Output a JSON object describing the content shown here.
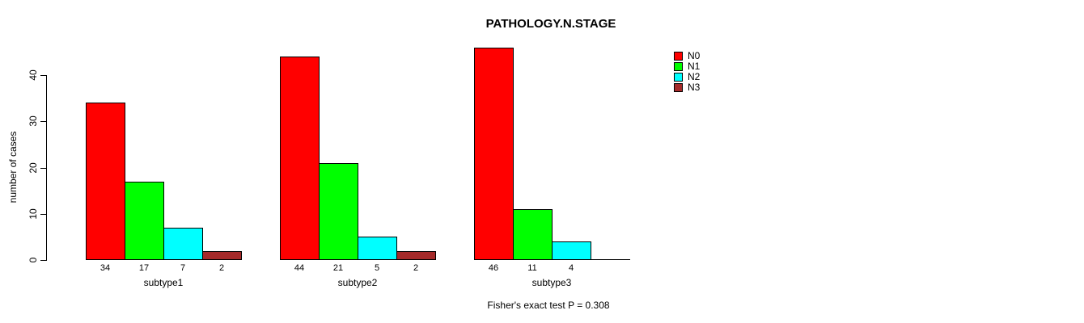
{
  "title": "PATHOLOGY.N.STAGE",
  "footer": "Fisher's exact test P = 0.308",
  "chart_data": {
    "type": "bar",
    "title": "PATHOLOGY.N.STAGE",
    "xlabel": "",
    "ylabel": "number of cases",
    "ylim": [
      0,
      40
    ],
    "yticks": [
      0,
      10,
      20,
      30,
      40
    ],
    "grid": false,
    "legend_position": "top-right",
    "series": [
      "N0",
      "N1",
      "N2",
      "N3"
    ],
    "colors": [
      "#FF0000",
      "#00FF00",
      "#00FFFF",
      "#A52A2A"
    ],
    "categories": [
      "subtype1",
      "subtype2",
      "subtype3"
    ],
    "groups": [
      {
        "label": "subtype1",
        "values": [
          34,
          17,
          7,
          2
        ]
      },
      {
        "label": "subtype2",
        "values": [
          44,
          21,
          5,
          2
        ]
      },
      {
        "label": "subtype3",
        "values": [
          46,
          11,
          4,
          0
        ]
      }
    ],
    "legend": [
      {
        "label": "N0",
        "color": "#FF0000"
      },
      {
        "label": "N1",
        "color": "#00FF00"
      },
      {
        "label": "N2",
        "color": "#00FFFF"
      },
      {
        "label": "N3",
        "color": "#A52A2A"
      }
    ],
    "value_labels_shown": true,
    "annotation": "Fisher's exact test P = 0.308"
  }
}
